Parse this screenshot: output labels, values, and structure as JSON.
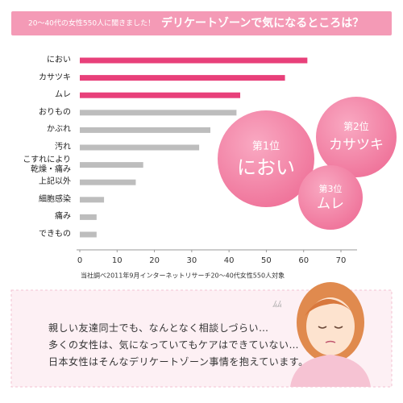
{
  "header": {
    "subtitle": "20〜40代の女性550人に聞きました！",
    "title": "デリケートゾーンで気になるところは？"
  },
  "chart_data": {
    "type": "bar",
    "orientation": "horizontal",
    "categories": [
      "におい",
      "カサツキ",
      "ムレ",
      "おりもの",
      "かぶれ",
      "汚れ",
      "こすれにより\n乾燥・痛み",
      "上記以外",
      "細胞感染",
      "痛み",
      "できもの"
    ],
    "values": [
      61,
      55,
      43,
      42,
      35,
      32,
      17,
      15,
      6.5,
      4.5,
      4.5
    ],
    "colors": [
      "#e8407a",
      "#e8407a",
      "#e8407a",
      "#bdbdbd",
      "#bdbdbd",
      "#bdbdbd",
      "#bdbdbd",
      "#bdbdbd",
      "#bdbdbd",
      "#bdbdbd",
      "#bdbdbd"
    ],
    "xlim": [
      0,
      70
    ],
    "xticks": [
      0,
      10,
      20,
      30,
      40,
      50,
      60,
      70
    ],
    "note": "当社調べ2011年9月インターネットリサーチ20〜40代女性550人対象"
  },
  "rankings": [
    {
      "rank": "第1位",
      "label": "におい"
    },
    {
      "rank": "第2位",
      "label": "カサツキ"
    },
    {
      "rank": "第3位",
      "label": "ムレ"
    }
  ],
  "message": {
    "lines": [
      "親しい友達同士でも、なんとなく相談しづらい…",
      "多くの女性は、気になっていてもケアはできていない…",
      "日本女性はそんなデリケートゾーン事情を抱えています。"
    ]
  }
}
